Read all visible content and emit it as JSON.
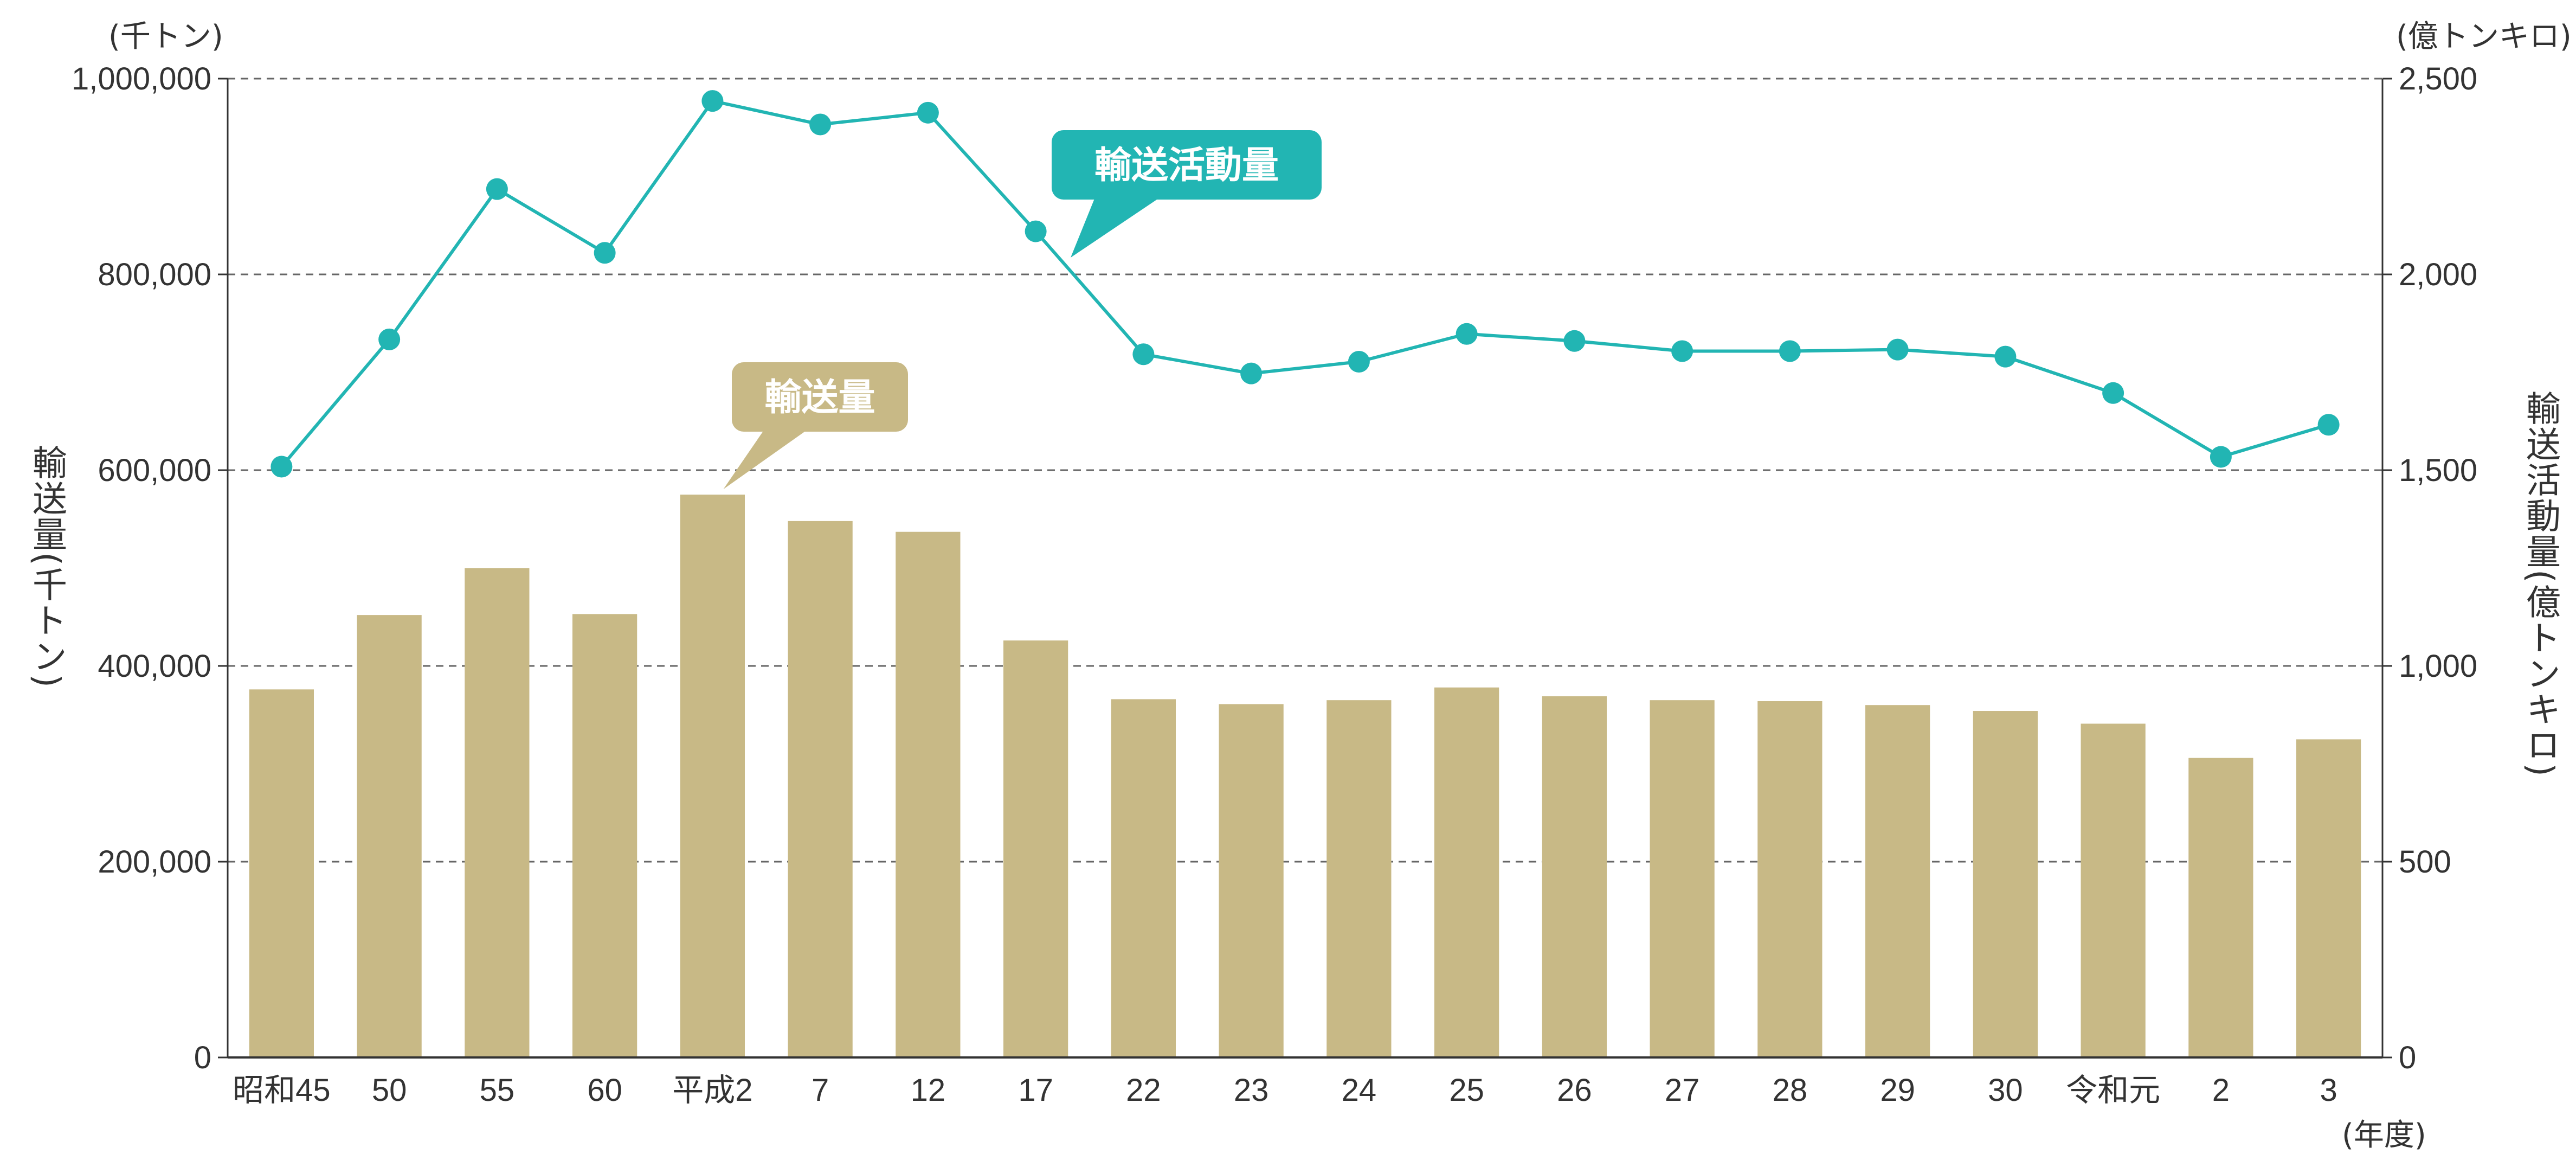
{
  "chart_data": {
    "type": "bar+line",
    "categories": [
      "昭和45",
      "50",
      "55",
      "60",
      "平成2",
      "7",
      "12",
      "17",
      "22",
      "23",
      "24",
      "25",
      "26",
      "27",
      "28",
      "29",
      "30",
      "令和元",
      "2",
      "3"
    ],
    "series": [
      {
        "name": "輸送量",
        "type": "bar",
        "axis": "left",
        "values": [
          376000,
          452000,
          500000,
          453000,
          575000,
          548000,
          537000,
          426000,
          366000,
          361000,
          365000,
          378000,
          369000,
          365000,
          364000,
          360000,
          354000,
          341000,
          306000,
          325000
        ]
      },
      {
        "name": "輸送活動量",
        "type": "line",
        "axis": "right",
        "values": [
          1509,
          1834,
          2218,
          2055,
          2443,
          2383,
          2413,
          2110,
          1796,
          1747,
          1777,
          1848,
          1830,
          1804,
          1804,
          1808,
          1790,
          1697,
          1534,
          1616
        ]
      }
    ],
    "left_axis": {
      "label": "輸送量(千トン)",
      "unit": "(千トン)",
      "ylim": [
        0,
        1000000
      ],
      "ticks": [
        "0",
        "200,000",
        "400,000",
        "600,000",
        "800,000",
        "1,000,000"
      ],
      "tick_values": [
        0,
        200000,
        400000,
        600000,
        800000,
        1000000
      ]
    },
    "right_axis": {
      "label": "輸送活動量(億トンキロ)",
      "unit": "(億トンキロ)",
      "ylim": [
        0,
        2500
      ],
      "ticks": [
        "0",
        "500",
        "1,000",
        "1,500",
        "2,000",
        "2,500"
      ],
      "tick_values": [
        0,
        500,
        1000,
        1500,
        2000,
        2500
      ]
    },
    "x_unit": "(年度)",
    "grid": true,
    "callouts": {
      "bar": "輸送量",
      "line": "輸送活動量"
    },
    "colors": {
      "bar": "#c8b986",
      "line": "#22b5b3",
      "grid": "#666666",
      "axis": "#333333",
      "text": "#333333"
    }
  }
}
